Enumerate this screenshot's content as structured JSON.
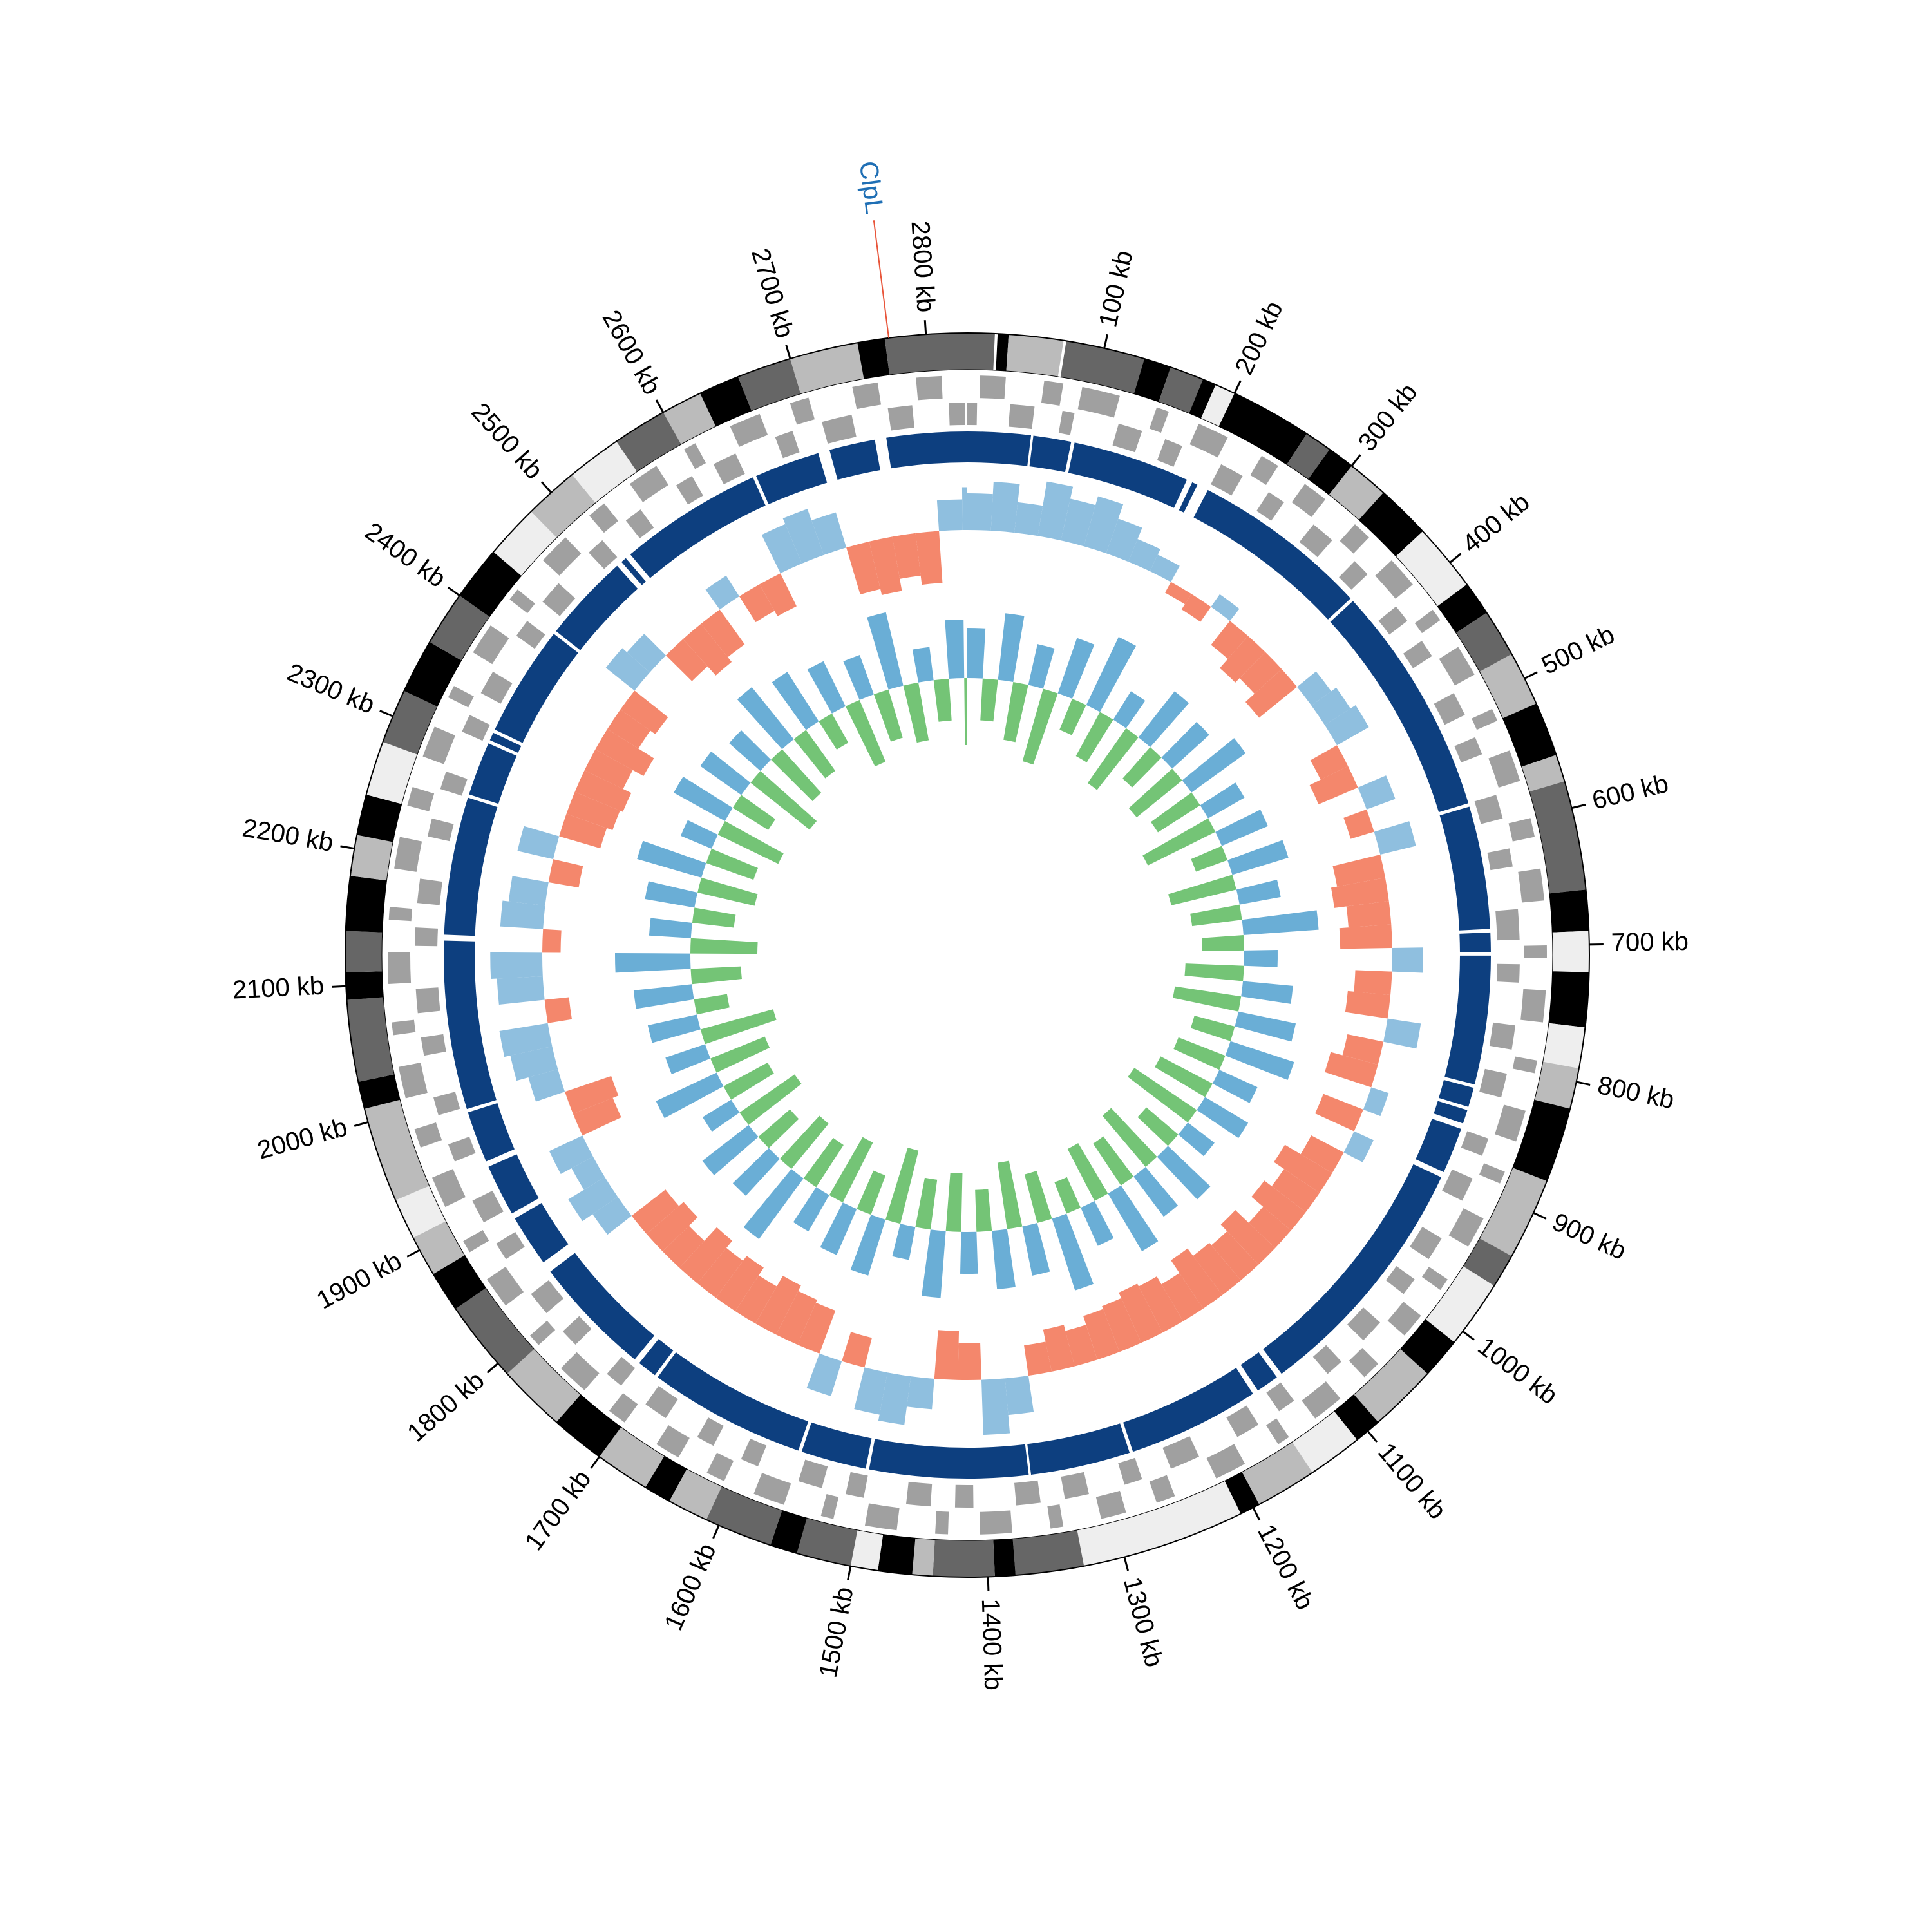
{
  "chart_data": {
    "type": "circos",
    "xlim": [
      0,
      2830
    ],
    "xticks": [
      {
        "value": 100,
        "label": "100 kb"
      },
      {
        "value": 200,
        "label": "200 kb"
      },
      {
        "value": 300,
        "label": "300 kb"
      },
      {
        "value": 400,
        "label": "400 kb"
      },
      {
        "value": 500,
        "label": "500 kb"
      },
      {
        "value": 600,
        "label": "600 kb"
      },
      {
        "value": 700,
        "label": "700 kb"
      },
      {
        "value": 800,
        "label": "800 kb"
      },
      {
        "value": 900,
        "label": "900 kb"
      },
      {
        "value": 1000,
        "label": "1000 kb"
      },
      {
        "value": 1100,
        "label": "1100 kb"
      },
      {
        "value": 1200,
        "label": "1200 kb"
      },
      {
        "value": 1300,
        "label": "1300 kb"
      },
      {
        "value": 1400,
        "label": "1400 kb"
      },
      {
        "value": 1500,
        "label": "1500 kb"
      },
      {
        "value": 1600,
        "label": "1600 kb"
      },
      {
        "value": 1700,
        "label": "1700 kb"
      },
      {
        "value": 1800,
        "label": "1800 kb"
      },
      {
        "value": 1900,
        "label": "1900 kb"
      },
      {
        "value": 2000,
        "label": "2000 kb"
      },
      {
        "value": 2100,
        "label": "2100 kb"
      },
      {
        "value": 2200,
        "label": "2200 kb"
      },
      {
        "value": 2300,
        "label": "2300 kb"
      },
      {
        "value": 2400,
        "label": "2400 kb"
      },
      {
        "value": 2500,
        "label": "2500 kb"
      },
      {
        "value": 2600,
        "label": "2600 kb"
      },
      {
        "value": 2700,
        "label": "2700 kb"
      },
      {
        "value": 2800,
        "label": "2800 kb"
      }
    ],
    "bands": [
      [
        0,
        20,
        "#666"
      ],
      [
        22,
        30,
        "#000"
      ],
      [
        30,
        70,
        "#bbb"
      ],
      [
        72,
        130,
        "#666"
      ],
      [
        130,
        150,
        "#000"
      ],
      [
        150,
        175,
        "#666"
      ],
      [
        175,
        185,
        "#000"
      ],
      [
        185,
        200,
        "#eee"
      ],
      [
        200,
        260,
        "#000"
      ],
      [
        260,
        280,
        "#666"
      ],
      [
        280,
        300,
        "#000"
      ],
      [
        300,
        330,
        "#bbb"
      ],
      [
        330,
        370,
        "#000"
      ],
      [
        370,
        420,
        "#eee"
      ],
      [
        420,
        445,
        "#000"
      ],
      [
        445,
        480,
        "#666"
      ],
      [
        480,
        520,
        "#bbb"
      ],
      [
        520,
        560,
        "#000"
      ],
      [
        560,
        580,
        "#bbb"
      ],
      [
        580,
        660,
        "#666"
      ],
      [
        660,
        690,
        "#000"
      ],
      [
        690,
        720,
        "#eee"
      ],
      [
        720,
        760,
        "#000"
      ],
      [
        760,
        790,
        "#eee"
      ],
      [
        790,
        820,
        "#bbb"
      ],
      [
        820,
        875,
        "#000"
      ],
      [
        875,
        935,
        "#bbb"
      ],
      [
        935,
        960,
        "#666"
      ],
      [
        960,
        1010,
        "#eee"
      ],
      [
        1010,
        1040,
        "#000"
      ],
      [
        1040,
        1090,
        "#bbb"
      ],
      [
        1090,
        1110,
        "#000"
      ],
      [
        1110,
        1150,
        "#eee"
      ],
      [
        1150,
        1195,
        "#bbb"
      ],
      [
        1195,
        1210,
        "#000"
      ],
      [
        1210,
        1330,
        "#eee"
      ],
      [
        1330,
        1380,
        "#666"
      ],
      [
        1380,
        1395,
        "#000"
      ],
      [
        1395,
        1440,
        "#666"
      ],
      [
        1440,
        1455,
        "#bbb"
      ],
      [
        1455,
        1480,
        "#000"
      ],
      [
        1480,
        1500,
        "#eee"
      ],
      [
        1500,
        1540,
        "#666"
      ],
      [
        1540,
        1560,
        "#000"
      ],
      [
        1560,
        1610,
        "#666"
      ],
      [
        1610,
        1640,
        "#bbb"
      ],
      [
        1640,
        1660,
        "#000"
      ],
      [
        1660,
        1700,
        "#bbb"
      ],
      [
        1700,
        1740,
        "#000"
      ],
      [
        1740,
        1790,
        "#bbb"
      ],
      [
        1790,
        1850,
        "#666"
      ],
      [
        1850,
        1880,
        "#000"
      ],
      [
        1880,
        1910,
        "#bbb"
      ],
      [
        1910,
        1940,
        "#eee"
      ],
      [
        1940,
        2010,
        "#bbb"
      ],
      [
        2010,
        2030,
        "#000"
      ],
      [
        2030,
        2090,
        "#666"
      ],
      [
        2090,
        2110,
        "#000"
      ],
      [
        2110,
        2140,
        "#666"
      ],
      [
        2140,
        2180,
        "#000"
      ],
      [
        2180,
        2210,
        "#bbb"
      ],
      [
        2210,
        2240,
        "#000"
      ],
      [
        2240,
        2280,
        "#eee"
      ],
      [
        2280,
        2320,
        "#666"
      ],
      [
        2320,
        2360,
        "#000"
      ],
      [
        2360,
        2400,
        "#666"
      ],
      [
        2400,
        2440,
        "#000"
      ],
      [
        2440,
        2480,
        "#eee"
      ],
      [
        2480,
        2520,
        "#bbb"
      ],
      [
        2520,
        2560,
        "#eee"
      ],
      [
        2560,
        2600,
        "#666"
      ],
      [
        2600,
        2630,
        "#bbb"
      ],
      [
        2630,
        2660,
        "#000"
      ],
      [
        2660,
        2700,
        "#666"
      ],
      [
        2700,
        2750,
        "#bbb"
      ],
      [
        2750,
        2770,
        "#000"
      ],
      [
        2770,
        2830,
        "#666"
      ]
    ],
    "genes": {
      "color": "#a0a0a0",
      "plus": [
        [
          10,
          30
        ],
        [
          60,
          75
        ],
        [
          90,
          120
        ],
        [
          150,
          160
        ],
        [
          185,
          210
        ],
        [
          240,
          255
        ],
        [
          280,
          300
        ],
        [
          330,
          345
        ],
        [
          370,
          395
        ],
        [
          420,
          430
        ],
        [
          455,
          480
        ],
        [
          510,
          520
        ],
        [
          545,
          570
        ],
        [
          600,
          615
        ],
        [
          640,
          665
        ],
        [
          700,
          710
        ],
        [
          735,
          760
        ],
        [
          790,
          800
        ],
        [
          830,
          855
        ],
        [
          880,
          890
        ],
        [
          920,
          945
        ],
        [
          975,
          985
        ],
        [
          1010,
          1030
        ],
        [
          1060,
          1075
        ],
        [
          1100,
          1125
        ],
        [
          1150,
          1160
        ],
        [
          1190,
          1215
        ],
        [
          1250,
          1265
        ],
        [
          1290,
          1310
        ],
        [
          1340,
          1350
        ],
        [
          1380,
          1405
        ],
        [
          1430,
          1440
        ],
        [
          1470,
          1495
        ],
        [
          1520,
          1530
        ],
        [
          1560,
          1585
        ],
        [
          1610,
          1625
        ],
        [
          1650,
          1670
        ],
        [
          1700,
          1715
        ],
        [
          1740,
          1765
        ],
        [
          1790,
          1800
        ],
        [
          1830,
          1855
        ],
        [
          1880,
          1890
        ],
        [
          1920,
          1945
        ],
        [
          1970,
          1985
        ],
        [
          2010,
          2035
        ],
        [
          2060,
          2070
        ],
        [
          2100,
          2125
        ],
        [
          2150,
          2160
        ],
        [
          2190,
          2215
        ],
        [
          2240,
          2255
        ],
        [
          2280,
          2305
        ],
        [
          2330,
          2340
        ],
        [
          2370,
          2395
        ],
        [
          2420,
          2430
        ],
        [
          2460,
          2485
        ],
        [
          2510,
          2525
        ],
        [
          2550,
          2575
        ],
        [
          2600,
          2610
        ],
        [
          2640,
          2665
        ],
        [
          2690,
          2705
        ],
        [
          2740,
          2760
        ],
        [
          2790,
          2810
        ]
      ],
      "minus": [
        [
          0,
          8
        ],
        [
          35,
          55
        ],
        [
          78,
          88
        ],
        [
          125,
          145
        ],
        [
          165,
          180
        ],
        [
          215,
          235
        ],
        [
          260,
          275
        ],
        [
          305,
          325
        ],
        [
          350,
          365
        ],
        [
          400,
          415
        ],
        [
          435,
          450
        ],
        [
          485,
          505
        ],
        [
          525,
          540
        ],
        [
          575,
          595
        ],
        [
          620,
          635
        ],
        [
          670,
          695
        ],
        [
          715,
          730
        ],
        [
          765,
          785
        ],
        [
          805,
          825
        ],
        [
          860,
          875
        ],
        [
          895,
          915
        ],
        [
          950,
          970
        ],
        [
          990,
          1005
        ],
        [
          1035,
          1055
        ],
        [
          1080,
          1095
        ],
        [
          1130,
          1145
        ],
        [
          1165,
          1185
        ],
        [
          1220,
          1245
        ],
        [
          1270,
          1285
        ],
        [
          1315,
          1335
        ],
        [
          1355,
          1375
        ],
        [
          1410,
          1425
        ],
        [
          1445,
          1465
        ],
        [
          1500,
          1515
        ],
        [
          1535,
          1555
        ],
        [
          1590,
          1605
        ],
        [
          1630,
          1645
        ],
        [
          1675,
          1695
        ],
        [
          1720,
          1735
        ],
        [
          1770,
          1785
        ],
        [
          1805,
          1825
        ],
        [
          1860,
          1875
        ],
        [
          1895,
          1915
        ],
        [
          1950,
          1965
        ],
        [
          1990,
          2005
        ],
        [
          2040,
          2055
        ],
        [
          2075,
          2095
        ],
        [
          2130,
          2145
        ],
        [
          2165,
          2185
        ],
        [
          2220,
          2235
        ],
        [
          2260,
          2275
        ],
        [
          2310,
          2325
        ],
        [
          2345,
          2365
        ],
        [
          2400,
          2415
        ],
        [
          2435,
          2455
        ],
        [
          2490,
          2505
        ],
        [
          2530,
          2545
        ],
        [
          2580,
          2595
        ],
        [
          2615,
          2635
        ],
        [
          2670,
          2685
        ],
        [
          2710,
          2735
        ],
        [
          2765,
          2785
        ],
        [
          2815,
          2828
        ]
      ]
    },
    "contigs": {
      "color": "#0d3f7f",
      "values": [
        [
          0,
          55
        ],
        [
          57,
          90
        ],
        [
          93,
          195
        ],
        [
          200,
          205
        ],
        [
          215,
          370
        ],
        [
          373,
          575
        ],
        [
          578,
          685
        ],
        [
          688,
          705
        ],
        [
          708,
          820
        ],
        [
          823,
          840
        ],
        [
          843,
          855
        ],
        [
          860,
          900
        ],
        [
          905,
          1125
        ],
        [
          1130,
          1150
        ],
        [
          1155,
          1270
        ],
        [
          1273,
          1360
        ],
        [
          1362,
          1500
        ],
        [
          1503,
          1560
        ],
        [
          1563,
          1700
        ],
        [
          1703,
          1720
        ],
        [
          1725,
          1830
        ],
        [
          1840,
          1885
        ],
        [
          1890,
          1935
        ],
        [
          1940,
          1985
        ],
        [
          1988,
          2135
        ],
        [
          2140,
          2260
        ],
        [
          2263,
          2310
        ],
        [
          2313,
          2320
        ],
        [
          2323,
          2420
        ],
        [
          2423,
          2500
        ],
        [
          2505,
          2510
        ],
        [
          2515,
          2640
        ],
        [
          2643,
          2700
        ],
        [
          2710,
          2750
        ],
        [
          2760,
          2830
        ]
      ]
    },
    "x": [
      0,
      25,
      50,
      75,
      100,
      125,
      150,
      175,
      200,
      225,
      250,
      275,
      300,
      325,
      350,
      375,
      400,
      425,
      450,
      475,
      500,
      525,
      550,
      575,
      600,
      625,
      650,
      675,
      700,
      725,
      750,
      775,
      800,
      825,
      850,
      875,
      900,
      925,
      950,
      975,
      1000,
      1025,
      1050,
      1075,
      1100,
      1125,
      1150,
      1175,
      1200,
      1225,
      1250,
      1275,
      1300,
      1325,
      1350,
      1375,
      1400,
      1425,
      1450,
      1475,
      1500,
      1525,
      1550,
      1575,
      1600,
      1625,
      1650,
      1675,
      1700,
      1725,
      1750,
      1775,
      1800,
      1825,
      1850,
      1875,
      1900,
      1925,
      1950,
      1975,
      2000,
      2025,
      2050,
      2075,
      2100,
      2125,
      2150,
      2175,
      2200,
      2225,
      2250,
      2275,
      2300,
      2325,
      2350,
      2375,
      2400,
      2425,
      2450,
      2475,
      2500,
      2525,
      2550,
      2575,
      2600,
      2625,
      2650,
      2675,
      2700,
      2725,
      2750,
      2775,
      2800,
      2825
    ],
    "skew": {
      "ylim": [
        -1,
        1
      ],
      "pos_color": "#8fbfdf",
      "neg_color": "#f4876c",
      "values": [
        0.6,
        0.8,
        0.5,
        0.9,
        0.7,
        0.85,
        0.6,
        0.4,
        0.3,
        -0.2,
        -0.3,
        0.25,
        -0.5,
        -0.7,
        -0.6,
        -0.8,
        0.4,
        0.5,
        0.6,
        -0.5,
        -0.7,
        0.5,
        -0.4,
        0.6,
        -0.8,
        -0.9,
        -0.7,
        -0.85,
        0.5,
        -0.6,
        -0.7,
        0.55,
        -0.6,
        -0.8,
        0.3,
        -0.7,
        0.35,
        -0.6,
        -0.9,
        -0.7,
        -0.85,
        -0.6,
        -0.9,
        -0.75,
        -0.8,
        -0.95,
        -0.7,
        -0.85,
        -0.9,
        -0.8,
        -0.75,
        -0.6,
        -0.7,
        -0.5,
        0.6,
        0.9,
        -0.6,
        -0.8,
        0.5,
        0.8,
        0.7,
        -0.5,
        0.6,
        -0.75,
        -0.8,
        -0.9,
        -0.7,
        -0.85,
        -0.75,
        -0.9,
        -0.6,
        -0.8,
        -0.7,
        0.5,
        0.7,
        0.4,
        0.6,
        -0.7,
        -0.8,
        0.5,
        0.7,
        0.8,
        -0.4,
        0.75,
        0.85,
        -0.3,
        0.7,
        0.6,
        -0.5,
        0.6,
        -0.7,
        -0.8,
        -0.85,
        -0.7,
        -0.9,
        -0.6,
        -0.7,
        0.6,
        0.5,
        -0.6,
        -0.8,
        -0.7,
        0.4,
        -0.5,
        -0.6,
        0.7,
        0.8,
        0.6,
        -0.8,
        -0.9,
        -0.7,
        -0.85,
        0.5,
        0.7
      ]
    },
    "gc": {
      "ylim": [
        -1,
        1
      ],
      "pos_color": "#6aaed6",
      "neg_color": "#74c476",
      "values": [
        0.6,
        -0.5,
        0.8,
        -0.7,
        0.5,
        -0.9,
        0.7,
        -0.4,
        0.9,
        -0.6,
        0.4,
        -0.8,
        0.7,
        -0.5,
        0.6,
        -0.7,
        0.8,
        -0.6,
        0.5,
        -0.9,
        0.6,
        -0.4,
        0.7,
        -0.8,
        0.5,
        -0.6,
        0.9,
        -0.5,
        0.4,
        -0.7,
        0.6,
        -0.8,
        0.7,
        -0.5,
        0.8,
        -0.6,
        0.5,
        -0.7,
        0.6,
        -0.9,
        0.4,
        -0.5,
        0.7,
        -0.8,
        0.6,
        -0.6,
        0.8,
        -0.7,
        0.5,
        -0.4,
        0.9,
        -0.6,
        0.6,
        -0.8,
        0.7,
        -0.5,
        0.5,
        -0.7,
        0.8,
        -0.6,
        0.4,
        -0.9,
        0.7,
        -0.5,
        0.6,
        -0.8,
        0.5,
        -0.6,
        0.9,
        -0.7,
        0.6,
        -0.5,
        0.7,
        -0.8,
        0.4,
        -0.6,
        0.8,
        -0.7,
        0.5,
        -0.9,
        0.6,
        -0.4,
        0.7,
        -0.6,
        0.9,
        -0.8,
        0.5,
        -0.5,
        0.6,
        -0.7,
        0.8,
        -0.6,
        0.4,
        -0.8,
        0.7,
        -0.5,
        0.6,
        -0.9,
        0.5,
        -0.7,
        0.8,
        -0.6,
        0.7,
        -0.4,
        0.6,
        -0.8,
        0.5,
        -0.6,
        0.9,
        -0.7,
        0.4,
        -0.5,
        0.7,
        -0.8
      ]
    },
    "annotations": [
      {
        "label": "ClpL",
        "position": 2773,
        "color": "#1f6fb5",
        "line_color": "#e8553a"
      }
    ]
  }
}
